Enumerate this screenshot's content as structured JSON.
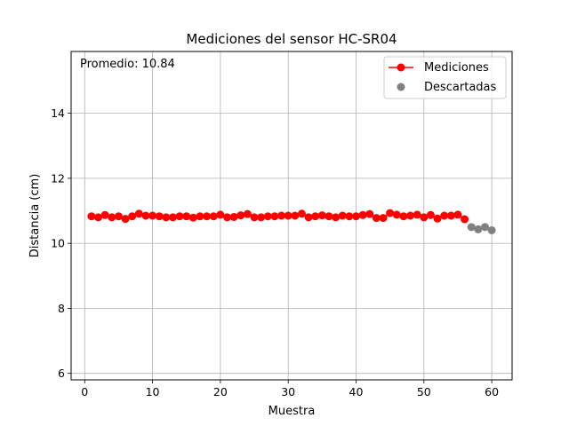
{
  "chart_data": {
    "type": "line",
    "title": "Mediciones del sensor HC-SR04",
    "xlabel": "Muestra",
    "ylabel": "Distancia (cm)",
    "xlim": [
      -2,
      63
    ],
    "ylim": [
      5.8,
      15.9
    ],
    "xticks": [
      0,
      10,
      20,
      30,
      40,
      50,
      60
    ],
    "yticks": [
      6,
      8,
      10,
      12,
      14
    ],
    "grid": true,
    "legend_position": "top-right",
    "annotation": "Promedio: 10.84",
    "series": [
      {
        "name": "Mediciones",
        "color": "#ff0000",
        "style": "line-with-markers",
        "x": [
          1,
          2,
          3,
          4,
          5,
          6,
          7,
          8,
          9,
          10,
          11,
          12,
          13,
          14,
          15,
          16,
          17,
          18,
          19,
          20,
          21,
          22,
          23,
          24,
          25,
          26,
          27,
          28,
          29,
          30,
          31,
          32,
          33,
          34,
          35,
          36,
          37,
          38,
          39,
          40,
          41,
          42,
          43,
          44,
          45,
          46,
          47,
          48,
          49,
          50,
          51,
          52,
          53,
          54,
          55,
          56
        ],
        "y": [
          10.83,
          10.8,
          10.87,
          10.8,
          10.83,
          10.75,
          10.83,
          10.91,
          10.85,
          10.85,
          10.83,
          10.8,
          10.8,
          10.83,
          10.83,
          10.79,
          10.83,
          10.83,
          10.83,
          10.88,
          10.8,
          10.81,
          10.86,
          10.9,
          10.8,
          10.8,
          10.83,
          10.83,
          10.85,
          10.85,
          10.85,
          10.91,
          10.8,
          10.83,
          10.86,
          10.83,
          10.8,
          10.85,
          10.83,
          10.83,
          10.87,
          10.9,
          10.78,
          10.78,
          10.93,
          10.88,
          10.83,
          10.85,
          10.88,
          10.8,
          10.87,
          10.76,
          10.85,
          10.85,
          10.88,
          10.74
        ]
      },
      {
        "name": "Descartadas",
        "color": "#808080",
        "style": "scatter",
        "x": [
          57,
          58,
          59,
          60
        ],
        "y": [
          10.5,
          10.43,
          10.5,
          10.4
        ]
      }
    ]
  }
}
